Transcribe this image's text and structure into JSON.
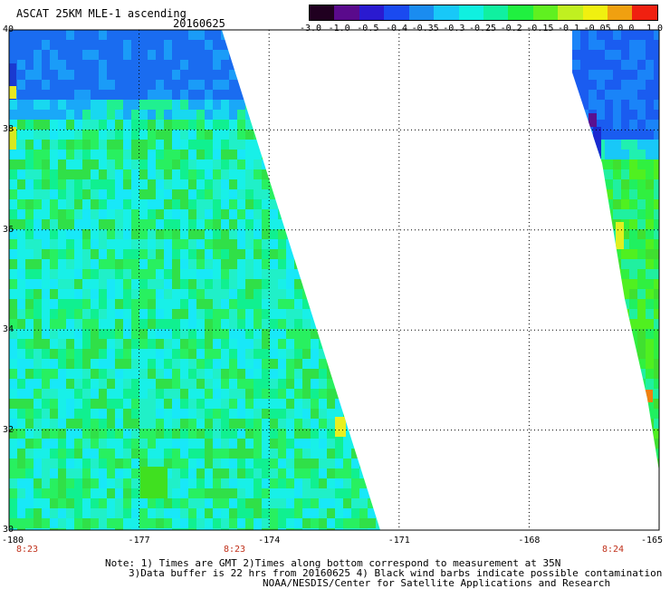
{
  "header": {
    "title": "ASCAT 25KM MLE-1 ascending",
    "date": "20160625"
  },
  "colorbar": {
    "labels": [
      "-3.0",
      "-1.0",
      "-0.5",
      "-0.4",
      "-0.35",
      "-0.3",
      "-0.25",
      "-0.2",
      "-0.15",
      "-0.1",
      "-0.05",
      "0.0",
      "1.0"
    ],
    "colors": [
      "#200020",
      "#5a0a8c",
      "#2a1ad0",
      "#1a4af0",
      "#1a8cf0",
      "#18c8f8",
      "#10f0e0",
      "#10f0a0",
      "#20f040",
      "#60f020",
      "#c0f020",
      "#f0f010",
      "#f0a010",
      "#f02010"
    ]
  },
  "map": {
    "lat_labels": [
      "40",
      "38",
      "36",
      "34",
      "32",
      "30"
    ],
    "lon_labels": [
      "-180",
      "-177",
      "-174",
      "-171",
      "-168",
      "-165"
    ],
    "time_labels": [
      "8:23",
      "8:23",
      "8:24"
    ],
    "swaths": [
      {
        "name": "left",
        "dominant": "cyan-green",
        "top_band": "blue"
      },
      {
        "name": "right",
        "dominant": "green",
        "top_band": "blue"
      }
    ]
  },
  "notes": {
    "line1": "Note: 1) Times are GMT 2)Times along bottom correspond to measurement at 35N",
    "line2": "3)Data buffer is 22 hrs from 20160625 4) Black wind barbs indicate possible contamination",
    "line3": "NOAA/NESDIS/Center for Satellite Applications and Research"
  }
}
